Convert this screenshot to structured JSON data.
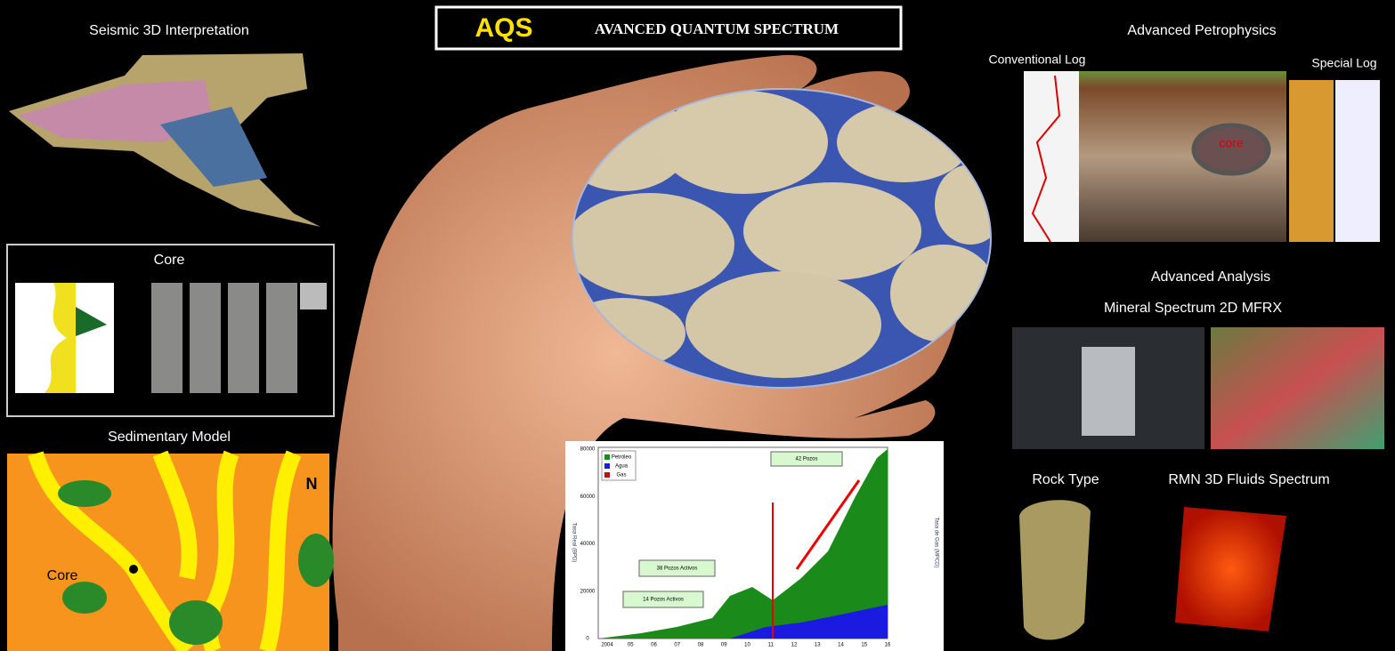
{
  "header": {
    "logo": "AQS",
    "title": "AVANCED QUANTUM SPECTRUM"
  },
  "left": {
    "seismic_title": "Seismic 3D Interpretation",
    "core_title": "Core",
    "sedimentary_title": "Sedimentary Model",
    "map_core_label": "Core",
    "map_north": "N"
  },
  "production_chart": {
    "legend": [
      "Petróleo",
      "Agua",
      "Gas"
    ],
    "annotations": [
      "14 Pozos Activos",
      "38 Pozos Activos",
      "42 Pozos"
    ],
    "left_axis_title": "Tasa Real (BPD)",
    "right_axis_title": "Tasa de Gas (MPCD)",
    "x_labels": [
      "2004",
      "05",
      "06",
      "07",
      "08",
      "09",
      "10",
      "11",
      "12",
      "13",
      "14",
      "15",
      "16"
    ],
    "y_labels": [
      "0",
      "20000",
      "40000",
      "60000",
      "80000"
    ]
  },
  "right": {
    "petrophysics_title": "Advanced Petrophysics",
    "conventional_log": "Conventional Log",
    "special_log": "Special Log",
    "core_marker": "core",
    "analysis_title": "Advanced Analysis",
    "mineral_title": "Mineral Spectrum 2D MFRX",
    "rock_type": "Rock Type",
    "rmn_title": "RMN 3D Fluids Spectrum"
  }
}
